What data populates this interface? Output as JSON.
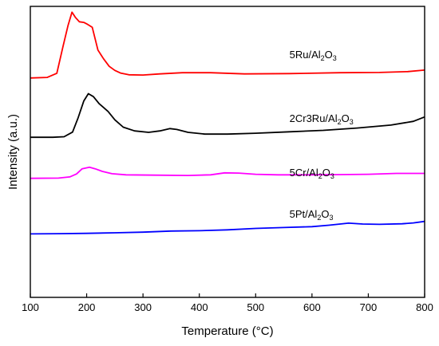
{
  "chart_data": {
    "type": "line",
    "title": "",
    "xlabel": "Temperature (°C)",
    "ylabel": "Intensity (a.u.)",
    "xlim": [
      100,
      800
    ],
    "x_ticks": [
      "100",
      "200",
      "300",
      "400",
      "500",
      "600",
      "700",
      "800"
    ],
    "y_ticks": [],
    "grid": false,
    "legend": "inline labels above each curve",
    "series": [
      {
        "name": "5Ru/Al2O3",
        "label_main": "5Ru/Al",
        "label_sub1": "2",
        "label_mid": "O",
        "label_sub2": "3",
        "label_at": [
          560,
          0.822
        ],
        "color": "#ff0000",
        "points": [
          [
            100,
            0.754
          ],
          [
            130,
            0.756
          ],
          [
            147,
            0.77
          ],
          [
            158,
            0.862
          ],
          [
            167,
            0.935
          ],
          [
            174,
            0.98
          ],
          [
            180,
            0.962
          ],
          [
            187,
            0.947
          ],
          [
            195,
            0.945
          ],
          [
            200,
            0.94
          ],
          [
            210,
            0.928
          ],
          [
            220,
            0.85
          ],
          [
            230,
            0.82
          ],
          [
            240,
            0.794
          ],
          [
            250,
            0.78
          ],
          [
            260,
            0.771
          ],
          [
            275,
            0.765
          ],
          [
            300,
            0.764
          ],
          [
            330,
            0.768
          ],
          [
            370,
            0.772
          ],
          [
            420,
            0.772
          ],
          [
            480,
            0.768
          ],
          [
            560,
            0.769
          ],
          [
            650,
            0.772
          ],
          [
            720,
            0.773
          ],
          [
            770,
            0.776
          ],
          [
            800,
            0.781
          ]
        ]
      },
      {
        "name": "2Cr3Ru/Al2O3",
        "label_main": "2Cr3Ru/Al",
        "label_sub1": "2",
        "label_mid": "O",
        "label_sub2": "3",
        "label_at": [
          560,
          0.603
        ],
        "color": "#000000",
        "points": [
          [
            100,
            0.55
          ],
          [
            140,
            0.55
          ],
          [
            160,
            0.552
          ],
          [
            175,
            0.568
          ],
          [
            185,
            0.618
          ],
          [
            195,
            0.675
          ],
          [
            203,
            0.7
          ],
          [
            212,
            0.69
          ],
          [
            222,
            0.666
          ],
          [
            238,
            0.639
          ],
          [
            250,
            0.61
          ],
          [
            265,
            0.585
          ],
          [
            285,
            0.572
          ],
          [
            310,
            0.567
          ],
          [
            330,
            0.572
          ],
          [
            348,
            0.58
          ],
          [
            360,
            0.577
          ],
          [
            380,
            0.567
          ],
          [
            410,
            0.561
          ],
          [
            450,
            0.561
          ],
          [
            500,
            0.564
          ],
          [
            560,
            0.569
          ],
          [
            620,
            0.574
          ],
          [
            680,
            0.582
          ],
          [
            740,
            0.592
          ],
          [
            780,
            0.605
          ],
          [
            800,
            0.62
          ]
        ]
      },
      {
        "name": "5Cr/Al2O3",
        "label_main": "5Cr/Al",
        "label_sub1": "2",
        "label_mid": "O",
        "label_sub2": "3",
        "label_at": [
          560,
          0.416
        ],
        "color": "#ff00ff",
        "points": [
          [
            100,
            0.409
          ],
          [
            150,
            0.41
          ],
          [
            170,
            0.414
          ],
          [
            182,
            0.424
          ],
          [
            192,
            0.442
          ],
          [
            205,
            0.447
          ],
          [
            215,
            0.442
          ],
          [
            228,
            0.433
          ],
          [
            245,
            0.425
          ],
          [
            270,
            0.421
          ],
          [
            320,
            0.42
          ],
          [
            380,
            0.419
          ],
          [
            420,
            0.421
          ],
          [
            445,
            0.428
          ],
          [
            470,
            0.427
          ],
          [
            500,
            0.423
          ],
          [
            540,
            0.421
          ],
          [
            600,
            0.421
          ],
          [
            650,
            0.422
          ],
          [
            700,
            0.423
          ],
          [
            750,
            0.426
          ],
          [
            800,
            0.426
          ]
        ]
      },
      {
        "name": "5Pt/Al2O3",
        "label_main": "5Pt/Al",
        "label_sub1": "2",
        "label_mid": "O",
        "label_sub2": "3",
        "label_at": [
          560,
          0.274
        ],
        "color": "#0000ff",
        "points": [
          [
            100,
            0.218
          ],
          [
            150,
            0.219
          ],
          [
            200,
            0.22
          ],
          [
            250,
            0.222
          ],
          [
            300,
            0.224
          ],
          [
            350,
            0.228
          ],
          [
            400,
            0.229
          ],
          [
            450,
            0.232
          ],
          [
            500,
            0.237
          ],
          [
            550,
            0.24
          ],
          [
            600,
            0.243
          ],
          [
            630,
            0.248
          ],
          [
            665,
            0.255
          ],
          [
            690,
            0.252
          ],
          [
            720,
            0.251
          ],
          [
            760,
            0.253
          ],
          [
            780,
            0.256
          ],
          [
            800,
            0.261
          ]
        ]
      }
    ]
  }
}
